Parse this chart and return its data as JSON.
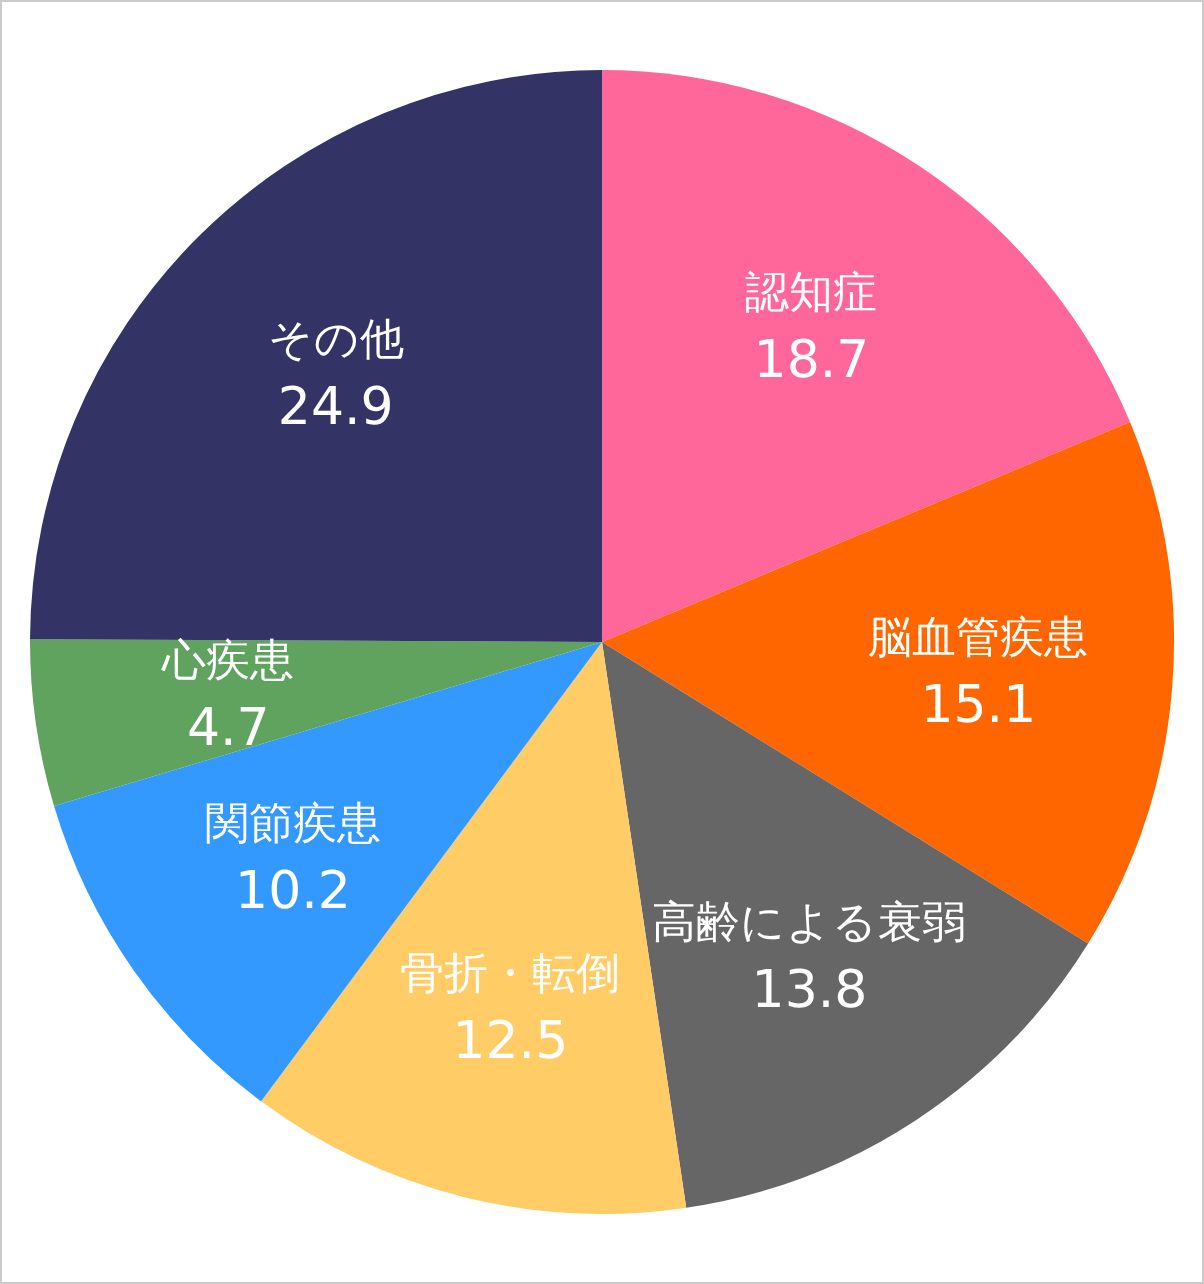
{
  "chart_data": {
    "type": "pie",
    "categories": [
      "認知症",
      "脳血管疾患",
      "高齢による衰弱",
      "骨折・転倒",
      "関節疾患",
      "心疾患",
      "その他"
    ],
    "values": [
      18.7,
      15.1,
      13.8,
      12.5,
      10.2,
      4.7,
      24.9
    ],
    "colors": [
      "#ff6699",
      "#ff6600",
      "#666666",
      "#ffcc66",
      "#3399ff",
      "#5fa35f",
      "#333366"
    ],
    "data_labels": true,
    "legend": false
  }
}
